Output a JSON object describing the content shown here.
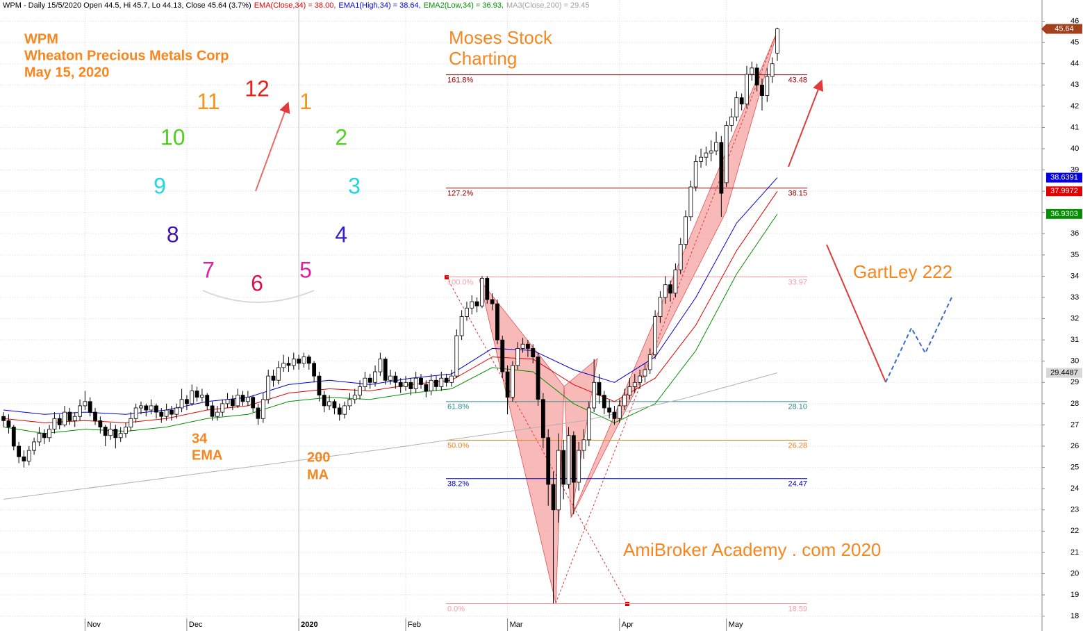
{
  "chart_data": {
    "type": "candlestick",
    "title_parts": [
      {
        "text": "WPM - Daily 15/5/2020 Open 44.5, Hi 45.7, Lo 44.13, Close 45.64 (3.7%)",
        "color": "#000000"
      },
      {
        "text": "EMA(Close,34) = 38.00,",
        "color": "#e00000"
      },
      {
        "text": "EMA1(High,34) = 38.64,",
        "color": "#0000d0"
      },
      {
        "text": "EMA2(Low,34) = 36.93,",
        "color": "#009000"
      },
      {
        "text": "MA3(Close,200) = 29.45",
        "color": "#a0a0a0"
      }
    ],
    "notes": {
      "company": [
        "WPM",
        "Wheaton Precious Metals Corp",
        "May 15, 2020"
      ],
      "brand": [
        "Moses Stock",
        "Charting"
      ],
      "ema": [
        "34",
        "EMA"
      ],
      "ma": [
        "200",
        "MA"
      ],
      "pattern": "GartLey 222",
      "site": "AmiBroker Academy . com 2020"
    },
    "clock": [
      {
        "text": "12",
        "color": "#e8201a"
      },
      {
        "text": "1",
        "color": "#f7941d"
      },
      {
        "text": "2",
        "color": "#50d020"
      },
      {
        "text": "3",
        "color": "#20d8e0"
      },
      {
        "text": "4",
        "color": "#3020d0"
      },
      {
        "text": "5",
        "color": "#e020a0"
      },
      {
        "text": "6",
        "color": "#e0104a"
      },
      {
        "text": "7",
        "color": "#e020a0"
      },
      {
        "text": "8",
        "color": "#4010b0"
      },
      {
        "text": "9",
        "color": "#20d8e0"
      },
      {
        "text": "10",
        "color": "#50d020"
      },
      {
        "text": "11",
        "color": "#f7941d"
      }
    ],
    "ylim": [
      17.3,
      47.0
    ],
    "yticks": [
      18,
      19,
      20,
      21,
      22,
      23,
      24,
      25,
      26,
      27,
      28,
      29,
      30,
      31,
      32,
      33,
      34,
      35,
      36,
      37,
      38,
      39,
      40,
      41,
      42,
      43,
      44,
      45,
      46
    ],
    "xlim": [
      -0.7,
      204.0
    ],
    "xticks": [
      {
        "value": 16,
        "label": "Nov"
      },
      {
        "value": 36,
        "label": "Dec"
      },
      {
        "value": 58,
        "label": "2020"
      },
      {
        "value": 79,
        "label": "Feb"
      },
      {
        "value": 99,
        "label": "Mar"
      },
      {
        "value": 121,
        "label": "Apr"
      },
      {
        "value": 142,
        "label": "May"
      }
    ],
    "grid": true,
    "up_color": "#ffffff",
    "down_color": "#000000",
    "ohlc": [
      [
        27.4,
        27.6,
        26.9,
        27.2
      ],
      [
        27.2,
        27.5,
        26.6,
        26.9
      ],
      [
        26.9,
        27.0,
        25.8,
        26.0
      ],
      [
        26.0,
        26.2,
        25.2,
        25.5
      ],
      [
        25.5,
        25.8,
        25.0,
        25.3
      ],
      [
        25.3,
        26.0,
        25.1,
        25.8
      ],
      [
        25.8,
        26.4,
        25.6,
        26.2
      ],
      [
        26.2,
        26.9,
        26.0,
        26.6
      ],
      [
        26.6,
        26.8,
        26.1,
        26.4
      ],
      [
        26.4,
        27.0,
        26.2,
        26.8
      ],
      [
        26.8,
        27.6,
        26.6,
        27.3
      ],
      [
        27.3,
        27.5,
        26.8,
        27.0
      ],
      [
        27.0,
        27.9,
        26.9,
        27.6
      ],
      [
        27.6,
        27.8,
        27.0,
        27.2
      ],
      [
        27.2,
        27.6,
        26.9,
        27.4
      ],
      [
        27.4,
        28.2,
        27.2,
        27.9
      ],
      [
        27.9,
        28.6,
        27.7,
        28.1
      ],
      [
        28.1,
        28.3,
        27.4,
        27.6
      ],
      [
        27.6,
        27.8,
        27.0,
        27.2
      ],
      [
        27.2,
        27.4,
        26.6,
        26.9
      ],
      [
        26.9,
        27.0,
        26.0,
        26.5
      ],
      [
        26.5,
        27.1,
        26.3,
        26.8
      ],
      [
        26.8,
        27.0,
        25.9,
        26.4
      ],
      [
        26.4,
        26.9,
        26.2,
        26.6
      ],
      [
        26.6,
        27.1,
        26.4,
        26.9
      ],
      [
        26.9,
        27.6,
        26.7,
        27.3
      ],
      [
        27.3,
        28.0,
        27.1,
        27.8
      ],
      [
        27.8,
        28.1,
        27.5,
        27.9
      ],
      [
        27.9,
        28.0,
        27.4,
        27.7
      ],
      [
        27.7,
        28.2,
        27.5,
        27.9
      ],
      [
        27.9,
        28.0,
        27.3,
        27.6
      ],
      [
        27.6,
        27.8,
        27.1,
        27.4
      ],
      [
        27.4,
        28.0,
        27.2,
        27.7
      ],
      [
        27.7,
        27.9,
        27.2,
        27.5
      ],
      [
        27.5,
        28.0,
        27.3,
        27.8
      ],
      [
        27.8,
        28.7,
        27.6,
        28.2
      ],
      [
        28.2,
        28.4,
        27.7,
        28.0
      ],
      [
        28.0,
        28.9,
        27.9,
        28.6
      ],
      [
        28.6,
        28.8,
        28.1,
        28.3
      ],
      [
        28.3,
        28.7,
        28.1,
        28.4
      ],
      [
        28.4,
        28.5,
        27.7,
        27.9
      ],
      [
        27.9,
        28.1,
        27.2,
        27.4
      ],
      [
        27.4,
        27.9,
        27.2,
        27.6
      ],
      [
        27.6,
        28.2,
        27.4,
        28.0
      ],
      [
        28.0,
        28.5,
        27.8,
        28.2
      ],
      [
        28.2,
        28.4,
        27.7,
        27.9
      ],
      [
        27.9,
        28.7,
        27.8,
        28.4
      ],
      [
        28.4,
        28.6,
        27.9,
        28.1
      ],
      [
        28.1,
        28.6,
        27.9,
        28.3
      ],
      [
        28.3,
        28.4,
        27.6,
        27.8
      ],
      [
        27.8,
        28.0,
        27.0,
        27.3
      ],
      [
        27.3,
        28.5,
        27.1,
        28.2
      ],
      [
        28.2,
        29.6,
        28.0,
        29.3
      ],
      [
        29.3,
        29.6,
        28.8,
        29.1
      ],
      [
        29.1,
        30.0,
        28.9,
        29.7
      ],
      [
        29.7,
        30.3,
        29.5,
        29.9
      ],
      [
        29.9,
        30.2,
        29.5,
        29.8
      ],
      [
        29.8,
        30.4,
        29.6,
        30.1
      ],
      [
        30.1,
        30.3,
        29.6,
        29.9
      ],
      [
        29.9,
        30.4,
        29.7,
        30.2
      ],
      [
        30.2,
        30.3,
        29.6,
        29.9
      ],
      [
        29.9,
        30.0,
        29.0,
        29.3
      ],
      [
        29.3,
        29.5,
        28.1,
        28.4
      ],
      [
        28.4,
        28.6,
        27.6,
        27.9
      ],
      [
        27.9,
        28.4,
        27.7,
        28.1
      ],
      [
        28.1,
        28.2,
        27.5,
        27.8
      ],
      [
        27.8,
        28.0,
        27.2,
        27.5
      ],
      [
        27.5,
        28.1,
        27.3,
        27.9
      ],
      [
        27.9,
        28.5,
        27.7,
        28.2
      ],
      [
        28.2,
        28.7,
        28.0,
        28.4
      ],
      [
        28.4,
        29.1,
        28.2,
        28.8
      ],
      [
        28.8,
        29.5,
        28.6,
        29.2
      ],
      [
        29.2,
        29.4,
        28.7,
        29.0
      ],
      [
        29.0,
        29.8,
        28.8,
        29.5
      ],
      [
        29.5,
        30.4,
        29.3,
        30.1
      ],
      [
        30.1,
        30.2,
        28.9,
        29.1
      ],
      [
        29.1,
        29.6,
        28.9,
        29.3
      ],
      [
        29.3,
        29.5,
        28.7,
        29.0
      ],
      [
        29.0,
        29.2,
        28.5,
        28.8
      ],
      [
        28.8,
        29.3,
        28.6,
        29.0
      ],
      [
        29.0,
        29.2,
        28.4,
        28.7
      ],
      [
        28.7,
        29.5,
        28.5,
        29.2
      ],
      [
        29.2,
        29.4,
        28.7,
        28.9
      ],
      [
        28.9,
        29.1,
        28.3,
        28.6
      ],
      [
        28.6,
        29.4,
        28.4,
        29.1
      ],
      [
        29.1,
        29.3,
        28.6,
        28.8
      ],
      [
        28.8,
        29.5,
        28.6,
        29.2
      ],
      [
        29.2,
        29.4,
        28.8,
        29.0
      ],
      [
        29.0,
        29.6,
        28.8,
        29.3
      ],
      [
        29.3,
        31.5,
        29.2,
        31.2
      ],
      [
        31.2,
        32.4,
        31.0,
        32.1
      ],
      [
        32.1,
        32.8,
        31.9,
        32.5
      ],
      [
        32.5,
        33.1,
        32.2,
        32.8
      ],
      [
        32.8,
        33.0,
        32.3,
        32.6
      ],
      [
        32.6,
        34.0,
        32.5,
        33.9
      ],
      [
        33.9,
        34.0,
        32.7,
        32.9
      ],
      [
        32.9,
        33.2,
        32.4,
        32.7
      ],
      [
        32.7,
        32.9,
        30.8,
        31.0
      ],
      [
        31.0,
        31.2,
        29.2,
        29.5
      ],
      [
        29.5,
        29.8,
        27.5,
        28.3
      ],
      [
        28.3,
        30.0,
        28.1,
        29.8
      ],
      [
        29.8,
        30.9,
        29.6,
        30.6
      ],
      [
        30.6,
        31.1,
        30.4,
        30.8
      ],
      [
        30.8,
        31.0,
        30.2,
        30.6
      ],
      [
        30.6,
        30.8,
        29.9,
        30.2
      ],
      [
        30.2,
        30.4,
        27.9,
        28.2
      ],
      [
        28.2,
        28.5,
        25.9,
        26.4
      ],
      [
        26.4,
        26.8,
        23.2,
        24.2
      ],
      [
        24.2,
        24.8,
        18.6,
        23.0
      ],
      [
        23.0,
        26.6,
        22.4,
        25.8
      ],
      [
        25.8,
        26.3,
        23.5,
        24.2
      ],
      [
        24.2,
        26.9,
        24.0,
        26.5
      ],
      [
        26.5,
        26.7,
        22.8,
        24.3
      ],
      [
        24.3,
        26.2,
        23.9,
        25.8
      ],
      [
        25.8,
        26.8,
        25.4,
        26.3
      ],
      [
        26.3,
        28.1,
        26.0,
        27.8
      ],
      [
        27.8,
        30.1,
        27.6,
        29.0
      ],
      [
        29.0,
        29.4,
        28.0,
        28.4
      ],
      [
        28.4,
        28.6,
        27.5,
        27.8
      ],
      [
        27.8,
        28.2,
        27.3,
        27.6
      ],
      [
        27.6,
        27.9,
        27.0,
        27.3
      ],
      [
        27.3,
        28.2,
        27.1,
        27.9
      ],
      [
        27.9,
        28.7,
        27.7,
        28.4
      ],
      [
        28.4,
        29.2,
        28.2,
        28.8
      ],
      [
        28.8,
        29.4,
        28.5,
        29.0
      ],
      [
        29.0,
        29.6,
        28.7,
        29.3
      ],
      [
        29.3,
        29.9,
        29.0,
        29.6
      ],
      [
        29.6,
        30.6,
        29.4,
        30.3
      ],
      [
        30.3,
        32.4,
        30.1,
        32.1
      ],
      [
        32.1,
        33.3,
        31.8,
        33.0
      ],
      [
        33.0,
        34.0,
        32.7,
        33.6
      ],
      [
        33.6,
        33.8,
        32.8,
        33.2
      ],
      [
        33.2,
        34.6,
        33.0,
        34.3
      ],
      [
        34.3,
        35.8,
        34.1,
        35.5
      ],
      [
        35.5,
        37.1,
        35.3,
        36.8
      ],
      [
        36.8,
        38.5,
        36.6,
        38.2
      ],
      [
        38.2,
        39.7,
        38.0,
        39.4
      ],
      [
        39.4,
        40.0,
        39.1,
        39.6
      ],
      [
        39.6,
        40.1,
        39.2,
        39.8
      ],
      [
        39.8,
        40.4,
        39.4,
        39.9
      ],
      [
        39.9,
        40.8,
        39.7,
        40.3
      ],
      [
        40.3,
        40.6,
        36.8,
        37.9
      ],
      [
        38.4,
        41.3,
        38.2,
        41.1
      ],
      [
        41.1,
        41.9,
        40.8,
        41.5
      ],
      [
        41.5,
        42.7,
        41.3,
        42.4
      ],
      [
        42.4,
        42.6,
        41.8,
        42.1
      ],
      [
        42.1,
        43.9,
        41.9,
        43.5
      ],
      [
        43.5,
        44.1,
        43.2,
        43.8
      ],
      [
        43.8,
        44.0,
        42.7,
        43.0
      ],
      [
        43.0,
        43.3,
        41.8,
        42.5
      ],
      [
        42.5,
        43.8,
        42.2,
        43.4
      ],
      [
        43.4,
        44.3,
        43.1,
        44.0
      ],
      [
        44.5,
        45.7,
        44.13,
        45.64
      ]
    ],
    "lines": [
      {
        "color": "#0000d0",
        "x": [
          0,
          8,
          16,
          24,
          32,
          40,
          48,
          56,
          64,
          72,
          80,
          88,
          96,
          104,
          112,
          120,
          128,
          136,
          144,
          152
        ],
        "values": [
          27.7,
          27.5,
          27.6,
          27.5,
          27.7,
          28.1,
          28.3,
          28.9,
          29.1,
          28.9,
          29.2,
          29.4,
          30.6,
          30.5,
          29.6,
          29.0,
          30.2,
          33.0,
          36.5,
          38.64
        ]
      },
      {
        "color": "#e00000",
        "x": [
          0,
          8,
          16,
          24,
          32,
          40,
          48,
          56,
          64,
          72,
          80,
          88,
          96,
          104,
          112,
          120,
          128,
          136,
          144,
          152
        ],
        "values": [
          27.3,
          27.1,
          27.2,
          27.1,
          27.3,
          27.7,
          27.9,
          28.5,
          28.7,
          28.6,
          28.9,
          29.1,
          30.2,
          30.1,
          28.9,
          28.1,
          29.2,
          31.7,
          35.2,
          38.0
        ]
      },
      {
        "color": "#009000",
        "x": [
          0,
          8,
          16,
          24,
          32,
          40,
          48,
          56,
          64,
          72,
          80,
          88,
          96,
          104,
          112,
          120,
          128,
          136,
          144,
          152
        ],
        "values": [
          26.9,
          26.6,
          26.8,
          26.7,
          26.9,
          27.3,
          27.5,
          28.1,
          28.3,
          28.2,
          28.5,
          28.7,
          29.7,
          29.5,
          28.0,
          27.1,
          28.0,
          30.5,
          34.1,
          36.93
        ]
      },
      {
        "color": "#b0b0b0",
        "x": [
          0,
          38,
          76,
          114,
          133,
          152
        ],
        "values": [
          23.5,
          24.7,
          25.9,
          27.2,
          28.2,
          29.45
        ]
      }
    ],
    "price_tags": [
      {
        "value": 45.64,
        "color": "#a3411c"
      },
      {
        "value": 38.6391,
        "color": "#0000e0"
      },
      {
        "value": 37.9972,
        "color": "#e00000"
      },
      {
        "value": 36.9303,
        "color": "#009000"
      },
      {
        "value": 29.4487,
        "color": "#d8d8d8",
        "text_color": "#000000"
      }
    ],
    "fib_levels": [
      {
        "ratio": "161.8%",
        "value": 43.48,
        "color": "#a00000"
      },
      {
        "ratio": "127.2%",
        "value": 38.15,
        "color": "#8b0000"
      },
      {
        "ratio": "100.0%",
        "value": 33.97,
        "color": "#f4a0a8"
      },
      {
        "ratio": "61.8%",
        "value": 28.1,
        "label": "28.10",
        "color": "#2e8b8b"
      },
      {
        "ratio": "50.0%",
        "value": 26.28,
        "color": "#f08020"
      },
      {
        "ratio": "38.2%",
        "value": 24.47,
        "color": "#0000c0"
      },
      {
        "ratio": "0.0%",
        "value": 18.59,
        "color": "#f4a0a8"
      }
    ]
  }
}
